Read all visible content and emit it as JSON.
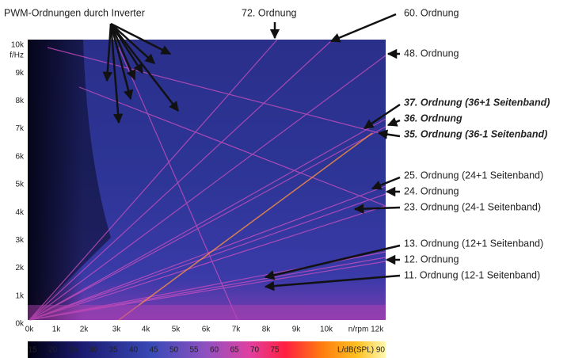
{
  "figure": {
    "x_axis": {
      "ticks": [
        "0k",
        "1k",
        "2k",
        "3k",
        "4k",
        "5k",
        "6k",
        "7k",
        "8k",
        "9k",
        "10k",
        "n/rpm 12k"
      ]
    },
    "y_axis": {
      "unit": "f/Hz",
      "ticks": [
        "0k",
        "1k",
        "2k",
        "3k",
        "4k",
        "5k",
        "6k",
        "7k",
        "8k",
        "9k",
        "10k"
      ]
    },
    "colorbar": {
      "ticks": [
        "15",
        "20",
        "25",
        "30",
        "35",
        "40",
        "45",
        "50",
        "55",
        "60",
        "65",
        "70",
        "75",
        "L/dB(SPL) 90"
      ]
    },
    "annotations": {
      "pwm": "PWM-Ordnungen durch Inverter",
      "top": [
        "72. Ordnung",
        "60. Ordnung"
      ],
      "right": [
        "48. Ordnung",
        "37. Ordnung (36+1 Seitenband)",
        "36. Ordnung",
        "35. Ordnung (36-1 Seitenband)",
        "25. Ordnung (24+1 Seitenband)",
        "24. Ordnung",
        "23. Ordnung (24-1 Seitenband)",
        "13. Ordnung (12+1 Seitenband)",
        "12. Ordnung",
        "11. Ordnung (12-1 Seitenband)"
      ]
    }
  }
}
